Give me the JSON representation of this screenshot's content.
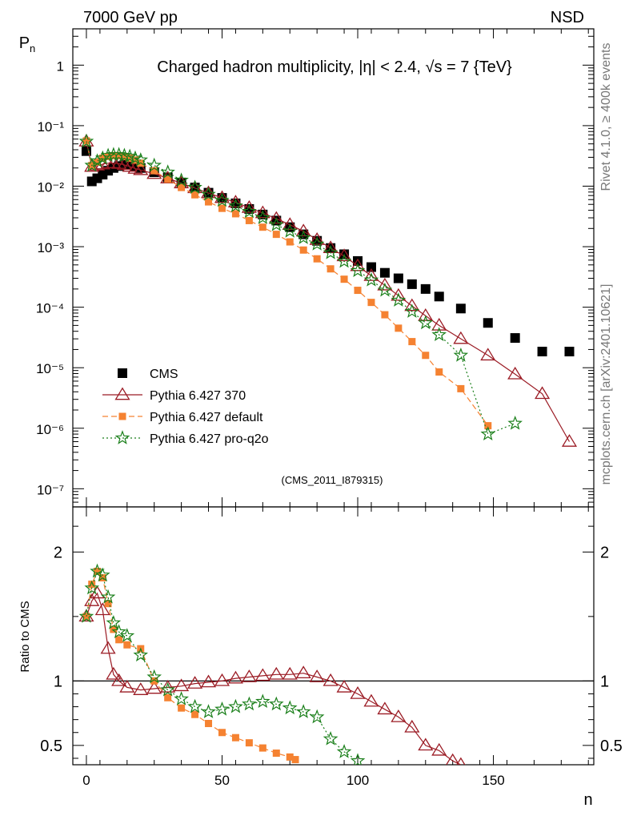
{
  "header": {
    "left": "7000 GeV pp",
    "right": "NSD",
    "title": "Charged hadron multiplicity, |η| < 2.4, √s = 7 {TeV}",
    "side_top": "Rivet 4.1.0, ≥ 400k events",
    "side_bottom": "mcplots.cern.ch [arXiv:2401.10621]",
    "analysis_id": "(CMS_2011_I879315)"
  },
  "chart_data": {
    "type": "scatter",
    "xlabel": "n",
    "ylabel_main": "Pn",
    "ylabel_ratio": "Ratio to CMS",
    "xlim": [
      -5,
      187
    ],
    "ylim_main_log10": [
      -7.3,
      0.6
    ],
    "ylim_ratio": [
      0.35,
      2.35
    ],
    "x_ticks": [
      0,
      50,
      100,
      150
    ],
    "x_tick_labels": [
      "0",
      "50",
      "100",
      "150"
    ],
    "y_ticks_main_labels": [
      "1",
      "10⁻¹",
      "10⁻²",
      "10⁻³",
      "10⁻⁴",
      "10⁻⁵",
      "10⁻⁶",
      "10⁻⁷"
    ],
    "y_ticks_ratio": [
      0.5,
      1,
      2
    ],
    "y_ticks_ratio_labels": [
      "0.5",
      "1",
      "2"
    ],
    "legend": [
      {
        "label": "CMS",
        "marker": "square",
        "color": "#000000"
      },
      {
        "label": "Pythia 6.427 370",
        "marker": "triangle",
        "color": "#9b1b24"
      },
      {
        "label": "Pythia 6.427 default",
        "marker": "square",
        "color": "#f58231"
      },
      {
        "label": "Pythia 6.427 pro-q2o",
        "marker": "star",
        "color": "#1a7f1a"
      }
    ],
    "series": [
      {
        "name": "CMS",
        "x": [
          0,
          2,
          4,
          6,
          8,
          10,
          12,
          14,
          16,
          18,
          20,
          25,
          30,
          35,
          40,
          45,
          50,
          55,
          60,
          65,
          70,
          75,
          80,
          85,
          90,
          95,
          100,
          105,
          110,
          115,
          120,
          125,
          130,
          138,
          148,
          158,
          168,
          178
        ],
        "y": [
          0.038,
          0.012,
          0.0135,
          0.0155,
          0.018,
          0.02,
          0.0215,
          0.0225,
          0.0225,
          0.0215,
          0.02,
          0.017,
          0.014,
          0.0115,
          0.0095,
          0.0078,
          0.0064,
          0.0052,
          0.0042,
          0.0034,
          0.0027,
          0.0021,
          0.0016,
          0.00125,
          0.00095,
          0.00075,
          0.00058,
          0.00046,
          0.00037,
          0.0003,
          0.00024,
          0.0002,
          0.00015,
          9.5e-05,
          5.5e-05,
          3.1e-05,
          1.85e-05,
          1.85e-05
        ]
      },
      {
        "name": "Pythia 6.427 370",
        "x": [
          0,
          2,
          4,
          6,
          8,
          10,
          12,
          14,
          16,
          18,
          20,
          25,
          30,
          35,
          40,
          45,
          50,
          55,
          60,
          65,
          70,
          75,
          80,
          85,
          90,
          95,
          100,
          105,
          110,
          115,
          120,
          125,
          130,
          138,
          148,
          158,
          168,
          178
        ],
        "y": [
          0.055,
          0.021,
          0.022,
          0.023,
          0.024,
          0.024,
          0.0235,
          0.0225,
          0.021,
          0.0195,
          0.0185,
          0.016,
          0.0135,
          0.0112,
          0.0093,
          0.0077,
          0.0064,
          0.0054,
          0.0044,
          0.0036,
          0.0029,
          0.0023,
          0.0018,
          0.0013,
          0.00095,
          0.0007,
          0.00048,
          0.00033,
          0.00023,
          0.000155,
          0.000105,
          7.2e-05,
          5e-05,
          3e-05,
          1.6e-05,
          7.8e-06,
          3.7e-06,
          6e-07
        ]
      },
      {
        "name": "Pythia 6.427 default",
        "x": [
          0,
          2,
          4,
          6,
          8,
          10,
          12,
          14,
          16,
          18,
          20,
          25,
          30,
          35,
          40,
          45,
          50,
          55,
          60,
          65,
          70,
          75,
          80,
          85,
          90,
          95,
          100,
          105,
          110,
          115,
          120,
          125,
          130,
          138,
          148
        ],
        "y": [
          0.056,
          0.022,
          0.025,
          0.029,
          0.031,
          0.032,
          0.032,
          0.031,
          0.029,
          0.027,
          0.024,
          0.018,
          0.013,
          0.0095,
          0.0072,
          0.0055,
          0.0043,
          0.0035,
          0.0027,
          0.0021,
          0.0016,
          0.0012,
          0.00088,
          0.00063,
          0.00043,
          0.00029,
          0.00019,
          0.00012,
          7.5e-05,
          4.5e-05,
          2.7e-05,
          1.6e-05,
          8.5e-06,
          4.5e-06,
          1.1e-06
        ]
      },
      {
        "name": "Pythia 6.427 pro-q2o",
        "x": [
          0,
          2,
          4,
          6,
          8,
          10,
          12,
          14,
          16,
          18,
          20,
          25,
          30,
          35,
          40,
          45,
          50,
          55,
          60,
          65,
          70,
          75,
          80,
          85,
          90,
          95,
          100,
          105,
          110,
          115,
          120,
          125,
          130,
          138,
          148,
          158
        ],
        "y": [
          0.055,
          0.022,
          0.026,
          0.029,
          0.032,
          0.033,
          0.033,
          0.032,
          0.031,
          0.029,
          0.027,
          0.022,
          0.017,
          0.0125,
          0.0095,
          0.0073,
          0.0058,
          0.0047,
          0.0038,
          0.003,
          0.0023,
          0.0018,
          0.0014,
          0.0011,
          0.00079,
          0.00057,
          0.0004,
          0.00028,
          0.00019,
          0.00013,
          8.5e-05,
          5.5e-05,
          3.5e-05,
          1.6e-05,
          8e-07,
          1.2e-06
        ]
      }
    ],
    "ratio_series": [
      {
        "name": "Pythia 6.427 370",
        "x": [
          0,
          2,
          4,
          6,
          8,
          10,
          12,
          15,
          20,
          25,
          30,
          35,
          40,
          45,
          50,
          55,
          60,
          65,
          70,
          75,
          80,
          85,
          90,
          95,
          100,
          105,
          110,
          115,
          120,
          125,
          130,
          135,
          138
        ],
        "y": [
          1.5,
          1.62,
          1.68,
          1.55,
          1.25,
          1.05,
          1.0,
          0.95,
          0.93,
          0.94,
          0.95,
          0.96,
          0.98,
          0.99,
          1.0,
          1.02,
          1.03,
          1.04,
          1.05,
          1.05,
          1.06,
          1.03,
          1.0,
          0.95,
          0.9,
          0.84,
          0.78,
          0.72,
          0.64,
          0.5,
          0.46,
          0.38,
          0.35
        ]
      },
      {
        "name": "Pythia 6.427 default",
        "x": [
          0,
          2,
          4,
          6,
          8,
          10,
          12,
          15,
          20,
          25,
          30,
          35,
          40,
          45,
          50,
          55,
          60,
          65,
          70,
          75,
          77
        ],
        "y": [
          1.5,
          1.75,
          1.85,
          1.8,
          1.6,
          1.4,
          1.32,
          1.28,
          1.25,
          1.0,
          0.87,
          0.79,
          0.74,
          0.67,
          0.6,
          0.56,
          0.52,
          0.48,
          0.44,
          0.41,
          0.39
        ]
      },
      {
        "name": "Pythia 6.427 pro-q2o",
        "x": [
          0,
          2,
          4,
          6,
          8,
          10,
          12,
          15,
          20,
          25,
          30,
          35,
          40,
          45,
          50,
          55,
          60,
          65,
          70,
          75,
          80,
          85,
          90,
          95,
          100
        ],
        "y": [
          1.5,
          1.72,
          1.85,
          1.82,
          1.65,
          1.45,
          1.38,
          1.35,
          1.2,
          1.03,
          0.93,
          0.86,
          0.8,
          0.76,
          0.78,
          0.8,
          0.82,
          0.84,
          0.82,
          0.79,
          0.76,
          0.72,
          0.55,
          0.45,
          0.38
        ]
      }
    ]
  }
}
